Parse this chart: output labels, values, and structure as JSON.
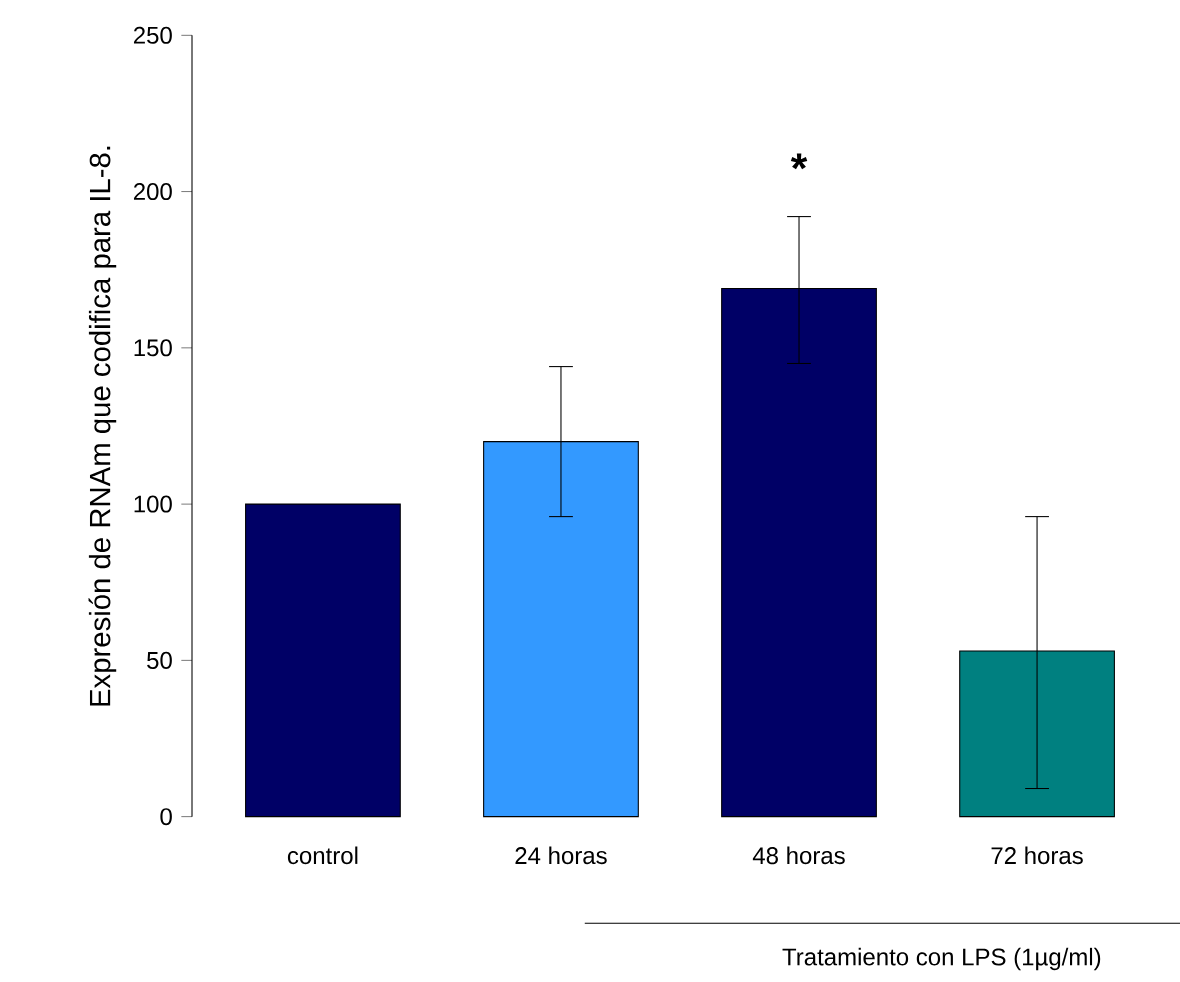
{
  "chart_data": {
    "type": "bar",
    "ylabel": "Expresión de RNAm que codifica para IL-8.",
    "categories": [
      "control",
      "24 horas",
      "48 horas",
      "72 horas"
    ],
    "values": [
      100,
      120,
      169,
      53
    ],
    "colors": [
      "#000066",
      "#3399ff",
      "#000066",
      "#008080"
    ],
    "errors": [
      null,
      [
        96,
        144
      ],
      [
        145,
        192
      ],
      [
        9,
        96
      ]
    ],
    "ylim": [
      0,
      250
    ],
    "yticks": [
      0,
      50,
      100,
      150,
      200,
      250
    ],
    "grid": false,
    "annotations": [
      "*",
      "Tratamiento con LPS (1µg/ml)"
    ]
  }
}
